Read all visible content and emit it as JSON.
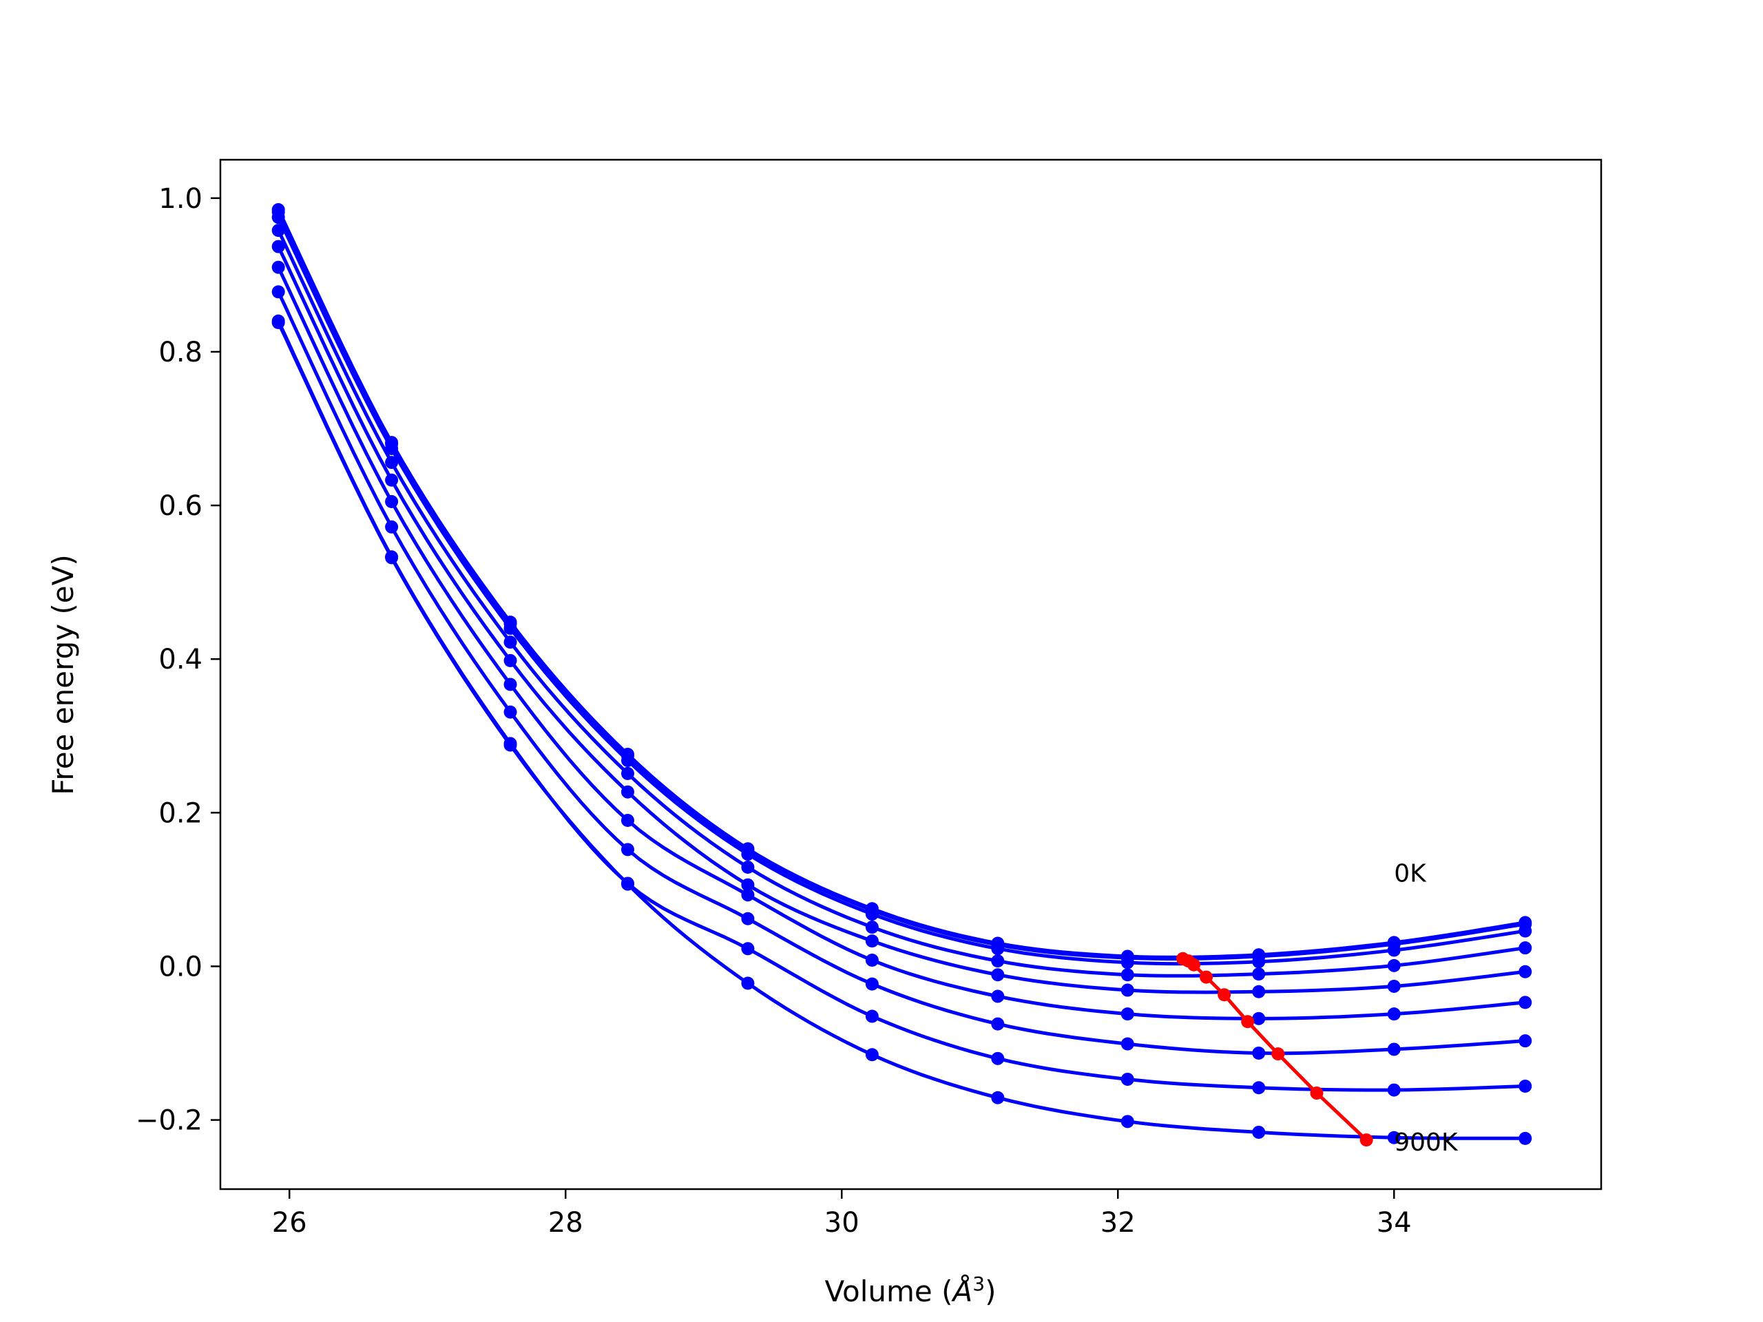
{
  "chart_data": {
    "type": "line",
    "title": "",
    "xlabel": "Volume (Å³)",
    "xlabel_parts": [
      "Volume (",
      "Å",
      "3",
      ")"
    ],
    "ylabel": "Free energy (eV)",
    "xlim": [
      25.5,
      35.5
    ],
    "ylim": [
      -0.29,
      1.05
    ],
    "xticks": [
      26,
      28,
      30,
      32,
      34
    ],
    "xtick_labels": [
      "26",
      "28",
      "30",
      "32",
      "34"
    ],
    "yticks": [
      -0.2,
      0.0,
      0.2,
      0.4,
      0.6,
      0.8,
      1.0
    ],
    "ytick_labels": [
      "−0.2",
      "0.0",
      "0.2",
      "0.4",
      "0.6",
      "0.8",
      "1.0"
    ],
    "grid": false,
    "annotations": [
      {
        "text": "0K",
        "x": 34.0,
        "y": 0.11
      },
      {
        "text": "900K",
        "x": 34.0,
        "y": -0.24
      }
    ],
    "x": [
      25.92,
      26.74,
      27.6,
      28.45,
      29.32,
      30.22,
      31.13,
      32.07,
      33.02,
      34.0,
      34.95
    ],
    "series_color": "#0000ff",
    "equilibrium_color": "#ff0000",
    "series": [
      {
        "label": "0K",
        "values": [
          0.985,
          0.682,
          0.448,
          0.276,
          0.153,
          0.075,
          0.03,
          0.013,
          0.015,
          0.031,
          0.057
        ]
      },
      {
        "values": [
          0.982,
          0.68,
          0.446,
          0.274,
          0.151,
          0.073,
          0.028,
          0.011,
          0.013,
          0.029,
          0.055
        ]
      },
      {
        "values": [
          0.975,
          0.674,
          0.44,
          0.268,
          0.146,
          0.068,
          0.023,
          0.005,
          0.006,
          0.021,
          0.046
        ]
      },
      {
        "values": [
          0.958,
          0.656,
          0.422,
          0.251,
          0.129,
          0.051,
          0.007,
          -0.011,
          -0.01,
          0.001,
          0.024
        ]
      },
      {
        "values": [
          0.937,
          0.633,
          0.398,
          0.227,
          0.106,
          0.033,
          -0.011,
          -0.031,
          -0.033,
          -0.026,
          -0.007
        ]
      },
      {
        "values": [
          0.91,
          0.605,
          0.367,
          0.19,
          0.093,
          0.008,
          -0.039,
          -0.062,
          -0.068,
          -0.062,
          -0.047
        ]
      },
      {
        "values": [
          0.878,
          0.572,
          0.331,
          0.152,
          0.062,
          -0.023,
          -0.075,
          -0.101,
          -0.113,
          -0.108,
          -0.097
        ]
      },
      {
        "values": [
          0.84,
          0.533,
          0.29,
          0.108,
          0.023,
          -0.065,
          -0.12,
          -0.147,
          -0.158,
          -0.161,
          -0.156
        ]
      },
      {
        "label": "900K",
        "values": [
          0.838,
          0.532,
          0.288,
          0.107,
          -0.022,
          -0.115,
          -0.171,
          -0.202,
          -0.216,
          -0.223,
          -0.224
        ]
      }
    ],
    "equilibrium": {
      "x": [
        32.47,
        32.51,
        32.55,
        32.64,
        32.77,
        32.94,
        33.16,
        33.44,
        33.8
      ],
      "y": [
        0.01,
        0.007,
        0.002,
        -0.014,
        -0.037,
        -0.072,
        -0.114,
        -0.165,
        -0.226
      ]
    }
  }
}
